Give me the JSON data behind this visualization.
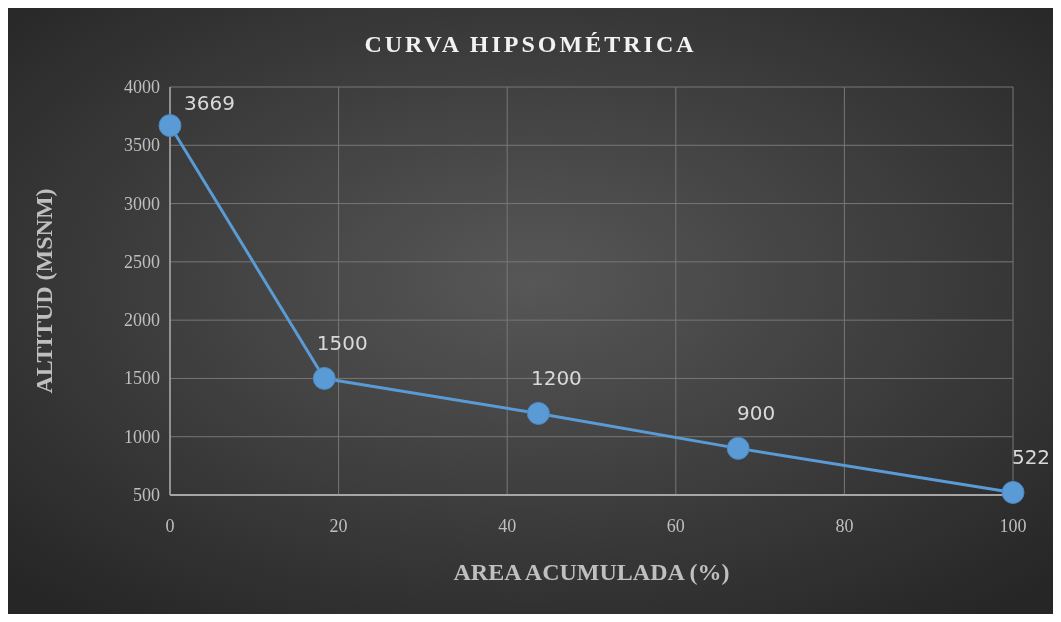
{
  "chart_data": {
    "type": "line",
    "title": "CURVA HIPSOMÉTRICA",
    "xlabel": "AREA ACUMULADA (%)",
    "ylabel": "ALTITUD (MSNM)",
    "x": [
      0,
      18.3,
      43.7,
      67.4,
      100
    ],
    "series": [
      {
        "color": "#5b9bd5",
        "values": [
          3669,
          1500,
          1200,
          900,
          522
        ]
      }
    ],
    "xlim": [
      0,
      100
    ],
    "xticks": [
      0,
      20,
      40,
      60,
      80,
      100
    ],
    "ylim": [
      500,
      4000
    ],
    "yticks": [
      500,
      1000,
      1500,
      2000,
      2500,
      3000,
      3500,
      4000
    ],
    "grid": true,
    "marker": "circle",
    "data_labels": true
  }
}
